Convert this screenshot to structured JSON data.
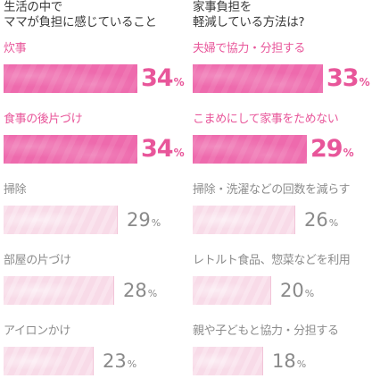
{
  "chart_data": [
    {
      "type": "bar",
      "title_lines": [
        "生活の中で",
        "ママが負担に感じていること"
      ],
      "unit": "%",
      "xlim": [
        0,
        34
      ],
      "items": [
        {
          "label": "炊事",
          "value": 34,
          "highlight": true
        },
        {
          "label": "食事の後片づけ",
          "value": 34,
          "highlight": true
        },
        {
          "label": "掃除",
          "value": 29,
          "highlight": false
        },
        {
          "label": "部屋の片づけ",
          "value": 28,
          "highlight": false
        },
        {
          "label": "アイロンかけ",
          "value": 23,
          "highlight": false
        }
      ]
    },
    {
      "type": "bar",
      "title_lines": [
        "家事負担を",
        "軽減している方法は?"
      ],
      "unit": "%",
      "xlim": [
        0,
        34
      ],
      "items": [
        {
          "label": "夫婦で協力・分担する",
          "value": 33,
          "highlight": true
        },
        {
          "label": "こまめにして家事をためない",
          "value": 29,
          "highlight": true
        },
        {
          "label": "掃除・洗濯などの回数を減らす",
          "value": 26,
          "highlight": false
        },
        {
          "label": "レトルト食品、惣菜などを利用",
          "value": 20,
          "highlight": false
        },
        {
          "label": "親や子どもと協力・分担する",
          "value": 18,
          "highlight": false
        }
      ]
    }
  ],
  "colors": {
    "highlight_bar": "#ee6aad",
    "highlight_text": "#e8569a",
    "normal_bar": "#f8dbe8",
    "normal_text": "#8a8a8a"
  }
}
